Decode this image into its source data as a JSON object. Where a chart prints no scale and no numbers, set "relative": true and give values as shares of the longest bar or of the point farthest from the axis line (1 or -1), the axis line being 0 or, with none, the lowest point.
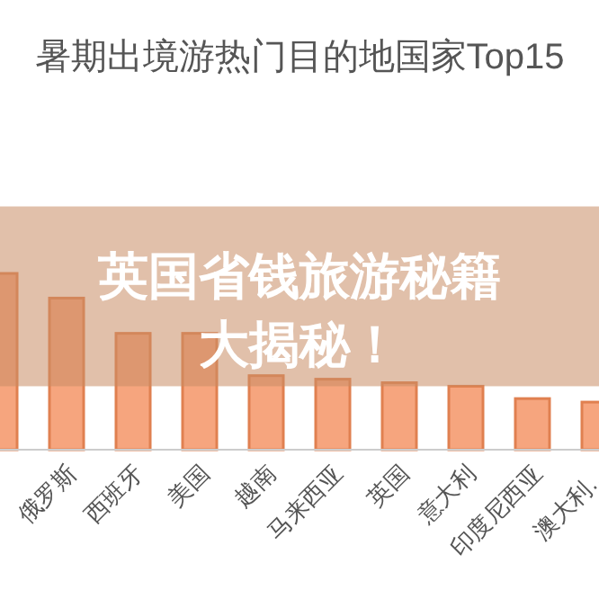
{
  "chart_data": {
    "type": "bar",
    "title": "暑期出境游热门目的地国家Top15",
    "relative": true,
    "color": "#f6a57e",
    "categories": [
      null,
      "俄罗斯",
      "西班牙",
      "美国",
      "越南",
      "马来西亚",
      "英国",
      "意大利",
      "印度尼西亚",
      "澳大利…"
    ],
    "values": [
      1,
      0.86,
      0.66,
      0.66,
      0.42,
      0.4,
      0.38,
      0.36,
      0.29,
      0.27
    ],
    "bands": [
      {
        "axis": "y",
        "from": 0.36,
        "to": 1.38,
        "color": "#c88c64"
      }
    ],
    "annotations": [
      "英国省钱旅游秘籍",
      "大揭秘！"
    ]
  }
}
